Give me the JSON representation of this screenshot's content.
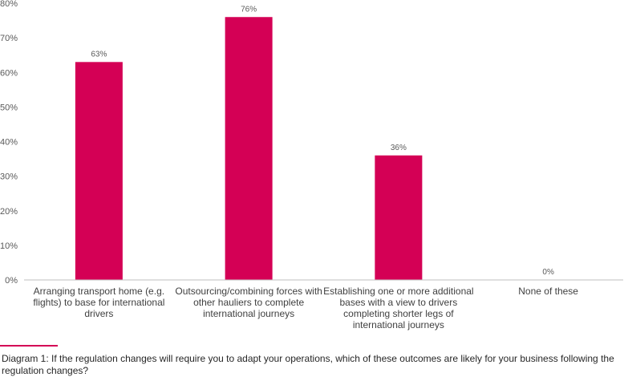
{
  "chart_data": {
    "type": "bar",
    "categories": [
      "Arranging transport home (e.g. flights) to base for international drivers",
      "Outsourcing/combining forces with other hauliers to complete international journeys",
      "Establishing one or more additional bases with a view to drivers completing shorter legs of international journeys",
      "None of these"
    ],
    "values": [
      63,
      76,
      36,
      0
    ],
    "data_labels": [
      "63%",
      "76%",
      "36%",
      "0%"
    ],
    "yticks": [
      "0%",
      "10%",
      "20%",
      "30%",
      "40%",
      "50%",
      "60%",
      "70%",
      "80%"
    ],
    "ylim": [
      0,
      80
    ],
    "grid": false,
    "legend": "none",
    "bar_color": "#d40055"
  },
  "caption": "Diagram 1: If the regulation changes will require you to adapt your operations, which of these outcomes are likely for your business following the regulation changes?"
}
